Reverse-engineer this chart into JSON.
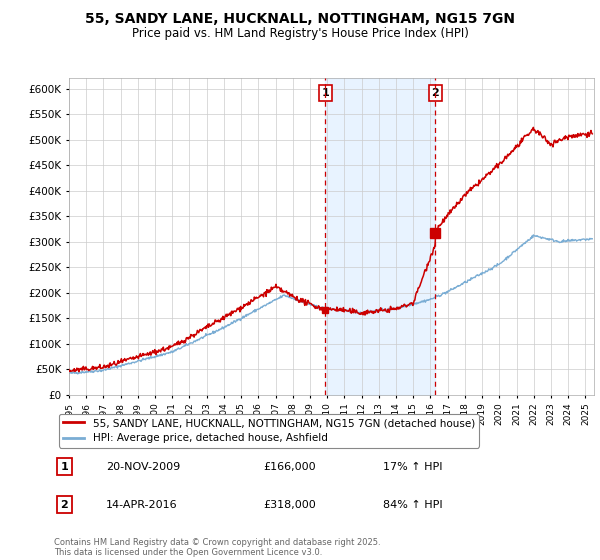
{
  "title": "55, SANDY LANE, HUCKNALL, NOTTINGHAM, NG15 7GN",
  "subtitle": "Price paid vs. HM Land Registry's House Price Index (HPI)",
  "ylim": [
    0,
    620000
  ],
  "yticks": [
    0,
    50000,
    100000,
    150000,
    200000,
    250000,
    300000,
    350000,
    400000,
    450000,
    500000,
    550000,
    600000
  ],
  "sale1_date": 2009.89,
  "sale1_price": 166000,
  "sale1_label": "1",
  "sale2_date": 2016.28,
  "sale2_price": 318000,
  "sale2_label": "2",
  "sale_color": "#cc0000",
  "hpi_color": "#7aadd4",
  "shade_color": "#ddeeff",
  "legend1": "55, SANDY LANE, HUCKNALL, NOTTINGHAM, NG15 7GN (detached house)",
  "legend2": "HPI: Average price, detached house, Ashfield",
  "annotation1_date": "20-NOV-2009",
  "annotation1_price": "£166,000",
  "annotation1_pct": "17% ↑ HPI",
  "annotation2_date": "14-APR-2016",
  "annotation2_price": "£318,000",
  "annotation2_pct": "84% ↑ HPI",
  "footer": "Contains HM Land Registry data © Crown copyright and database right 2025.\nThis data is licensed under the Open Government Licence v3.0.",
  "xmin": 1995,
  "xmax": 2025.5,
  "background_color": "#ffffff",
  "grid_color": "#cccccc"
}
